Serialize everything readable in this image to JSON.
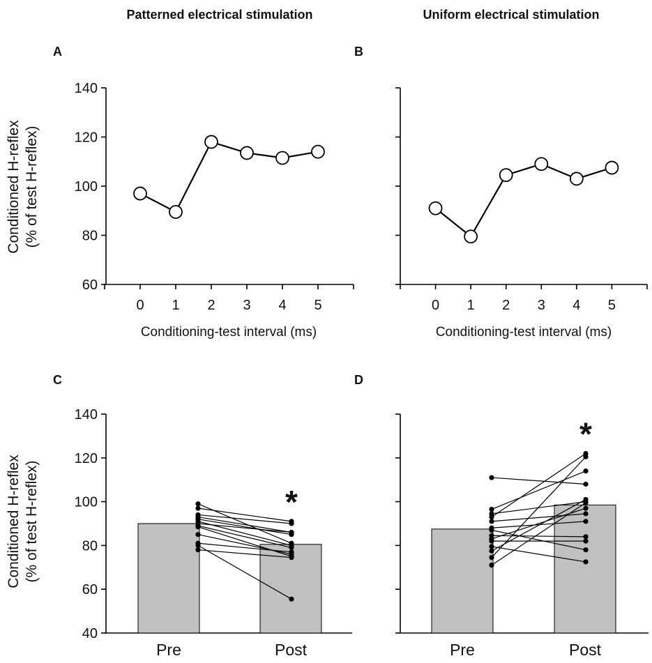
{
  "column_titles": {
    "left": "Patterned electrical stimulation",
    "right": "Uniform electrical stimulation"
  },
  "shared_ylabel": {
    "line1": "Conditioned H-reflex",
    "line2": "(% of test H-reflex)"
  },
  "colors": {
    "bar_fill": "#c0c0c0",
    "line": "#000000",
    "marker_open_fill": "#ffffff"
  },
  "chart_data": [
    {
      "id": "A",
      "panel_letter": "A",
      "type": "line",
      "title": "Patterned electrical stimulation",
      "xlabel": "Conditioning-test interval (ms)",
      "ylabel": "Conditioned H-reflex (% of test H-reflex)",
      "x": [
        0,
        1,
        2,
        3,
        4,
        5
      ],
      "y": [
        97,
        89.5,
        118,
        113.5,
        111.5,
        114
      ],
      "xlim": [
        -1,
        6
      ],
      "ylim": [
        60,
        140
      ],
      "yticks": [
        60,
        80,
        100,
        120,
        140
      ],
      "xticks": [
        0,
        1,
        2,
        3,
        4,
        5
      ],
      "marker": "open-circle"
    },
    {
      "id": "B",
      "panel_letter": "B",
      "type": "line",
      "title": "Uniform electrical stimulation",
      "xlabel": "Conditioning-test interval (ms)",
      "ylabel": "",
      "x": [
        0,
        1,
        2,
        3,
        4,
        5
      ],
      "y": [
        91,
        79.5,
        104.5,
        109,
        103,
        107.5
      ],
      "xlim": [
        -1,
        6
      ],
      "ylim": [
        60,
        140
      ],
      "yticks": [
        60,
        80,
        100,
        120,
        140
      ],
      "xticks": [
        0,
        1,
        2,
        3,
        4,
        5
      ],
      "marker": "open-circle"
    },
    {
      "id": "C",
      "panel_letter": "C",
      "type": "bar",
      "categories": [
        "Pre",
        "Post"
      ],
      "values": [
        90,
        80.5
      ],
      "ylabel": "Conditioned H-reflex (% of test H-reflex)",
      "ylim": [
        40,
        140
      ],
      "yticks": [
        40,
        60,
        80,
        100,
        120,
        140
      ],
      "significance": "*",
      "significance_on": "Post",
      "paired_subjects": [
        [
          99,
          81
        ],
        [
          97,
          91
        ],
        [
          94,
          90
        ],
        [
          93,
          86
        ],
        [
          92,
          85
        ],
        [
          91,
          80
        ],
        [
          90,
          86
        ],
        [
          89,
          79
        ],
        [
          88.5,
          75
        ],
        [
          85,
          76
        ],
        [
          81,
          77
        ],
        [
          80,
          55.5
        ],
        [
          78,
          74.5
        ]
      ]
    },
    {
      "id": "D",
      "panel_letter": "D",
      "type": "bar",
      "categories": [
        "Pre",
        "Post"
      ],
      "values": [
        87.5,
        98.5
      ],
      "ylabel": "",
      "ylim": [
        40,
        140
      ],
      "yticks": [
        40,
        60,
        80,
        100,
        120,
        140
      ],
      "significance": "*",
      "significance_on": "Post",
      "paired_subjects": [
        [
          111,
          108
        ],
        [
          96.5,
          114
        ],
        [
          94.5,
          100
        ],
        [
          93,
          122
        ],
        [
          91,
          94.5
        ],
        [
          88,
          91
        ],
        [
          87,
          78
        ],
        [
          84.5,
          84
        ],
        [
          83,
          97
        ],
        [
          82,
          82
        ],
        [
          79.5,
          72.5
        ],
        [
          77.5,
          101
        ],
        [
          74.5,
          120.5
        ],
        [
          71,
          99.5
        ]
      ]
    }
  ]
}
